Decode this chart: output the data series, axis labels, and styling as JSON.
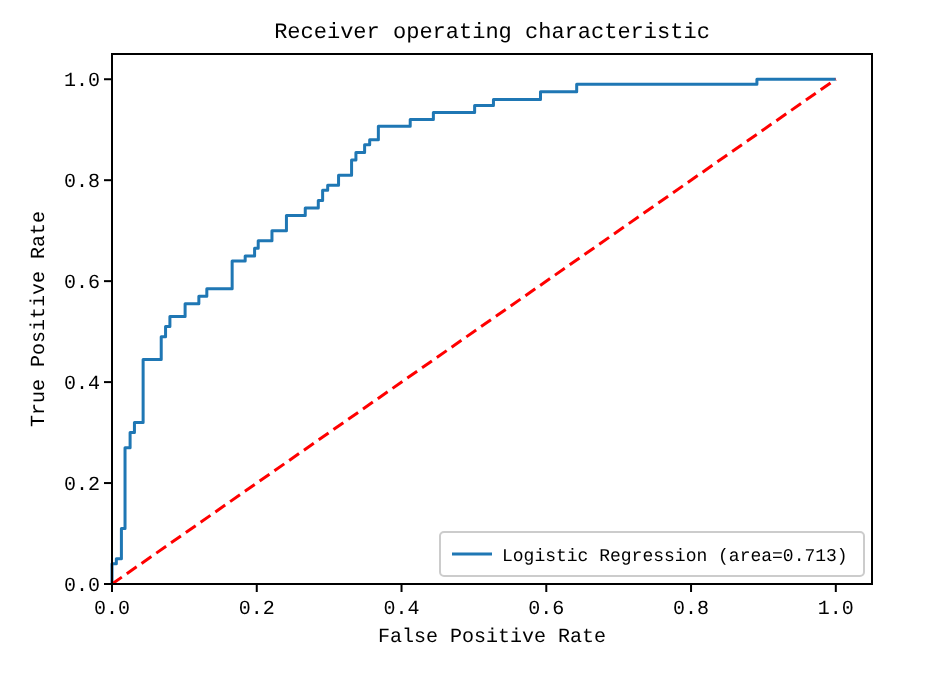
{
  "chart_data": {
    "type": "step",
    "title": "Receiver operating characteristic",
    "xlabel": "False Positive Rate",
    "ylabel": "True Positive Rate",
    "xlim": [
      0,
      1.05
    ],
    "ylim": [
      0,
      1.05
    ],
    "xticks": [
      {
        "value": 0,
        "label": "0.0"
      },
      {
        "value": 0.2,
        "label": "0.2"
      },
      {
        "value": 0.4,
        "label": "0.4"
      },
      {
        "value": 0.6,
        "label": "0.6"
      },
      {
        "value": 0.8,
        "label": "0.8"
      },
      {
        "value": 1,
        "label": "1.0"
      }
    ],
    "yticks": [
      {
        "value": 0,
        "label": "0.0"
      },
      {
        "value": 0.2,
        "label": "0.2"
      },
      {
        "value": 0.4,
        "label": "0.4"
      },
      {
        "value": 0.6,
        "label": "0.6"
      },
      {
        "value": 0.8,
        "label": "0.8"
      },
      {
        "value": 1,
        "label": "1.0"
      }
    ],
    "grid": false,
    "legend": "bottom right",
    "series": [
      {
        "name": "Logistic Regression (area=0.713)",
        "color": "#1f77b4",
        "line_style": "solid",
        "x": [
          0,
          0,
          0.006,
          0.013,
          0.018,
          0.025,
          0.031,
          0.043,
          0.068,
          0.074,
          0.08,
          0.101,
          0.12,
          0.131,
          0.166,
          0.184,
          0.197,
          0.202,
          0.221,
          0.241,
          0.267,
          0.285,
          0.291,
          0.298,
          0.313,
          0.331,
          0.337,
          0.349,
          0.356,
          0.368,
          0.412,
          0.444,
          0.501,
          0.527,
          0.592,
          0.642,
          0.891,
          1
        ],
        "values": [
          0,
          0.04,
          0.05,
          0.11,
          0.27,
          0.3,
          0.32,
          0.445,
          0.49,
          0.51,
          0.53,
          0.555,
          0.57,
          0.585,
          0.64,
          0.65,
          0.665,
          0.68,
          0.7,
          0.73,
          0.745,
          0.76,
          0.78,
          0.79,
          0.81,
          0.84,
          0.855,
          0.87,
          0.88,
          0.907,
          0.92,
          0.934,
          0.948,
          0.96,
          0.975,
          0.99,
          1,
          1
        ]
      },
      {
        "type": "line",
        "color": "#ff0000",
        "line_style": "dashed",
        "x": [
          0,
          1
        ],
        "values": [
          0,
          1
        ]
      }
    ]
  }
}
